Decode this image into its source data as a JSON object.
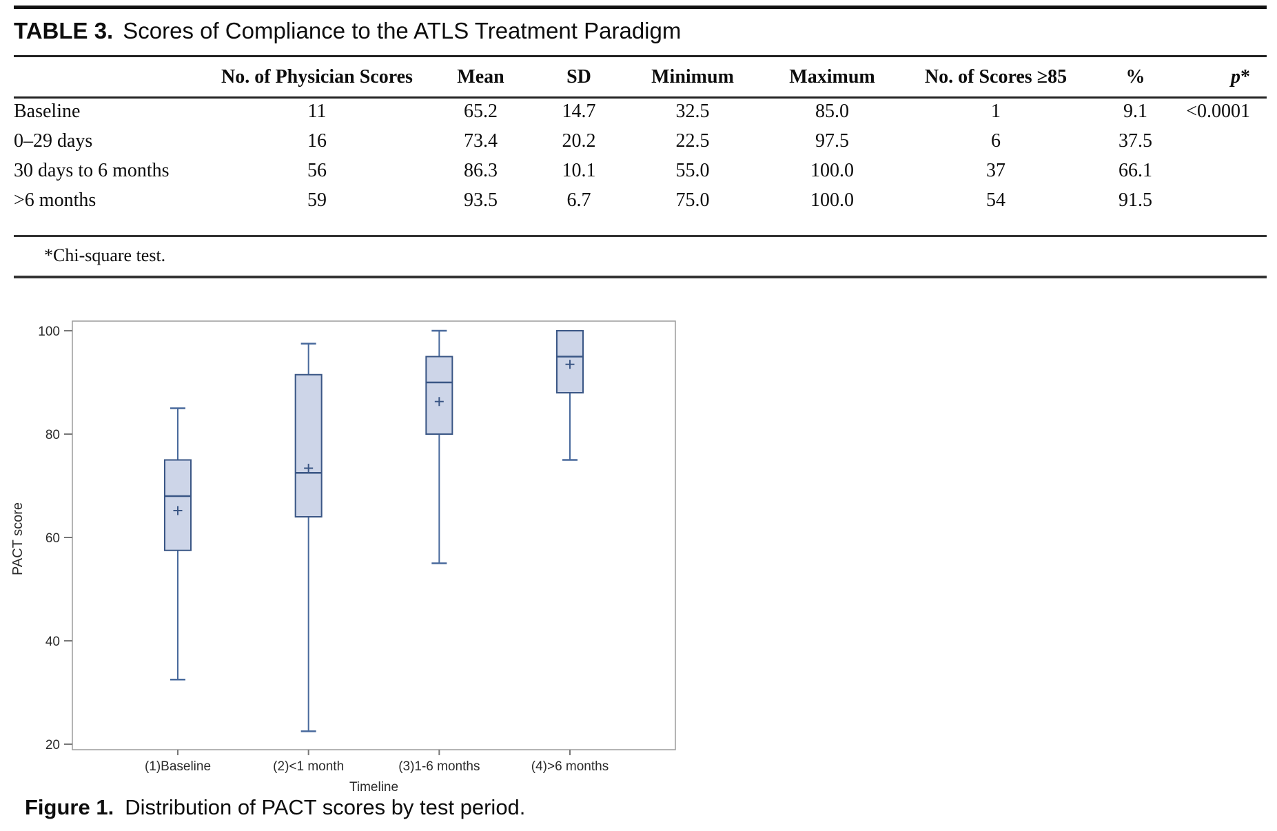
{
  "table": {
    "label": "TABLE 3.",
    "title": "Scores of Compliance to the ATLS Treatment Paradigm",
    "columns": [
      "",
      "No. of Physician Scores",
      "Mean",
      "SD",
      "Minimum",
      "Maximum",
      "No. of Scores ≥85",
      "%",
      "p*"
    ],
    "rows": [
      {
        "label": "Baseline",
        "n": "11",
        "mean": "65.2",
        "sd": "14.7",
        "min": "32.5",
        "max": "85.0",
        "n85": "1",
        "pct": "9.1",
        "p": "<0.0001"
      },
      {
        "label": "0–29 days",
        "n": "16",
        "mean": "73.4",
        "sd": "20.2",
        "min": "22.5",
        "max": "97.5",
        "n85": "6",
        "pct": "37.5",
        "p": ""
      },
      {
        "label": "30 days to 6 months",
        "n": "56",
        "mean": "86.3",
        "sd": "10.1",
        "min": "55.0",
        "max": "100.0",
        "n85": "37",
        "pct": "66.1",
        "p": ""
      },
      {
        "label": ">6 months",
        "n": "59",
        "mean": "93.5",
        "sd": "6.7",
        "min": "75.0",
        "max": "100.0",
        "n85": "54",
        "pct": "91.5",
        "p": ""
      }
    ],
    "footnote": "*Chi-square test."
  },
  "figure": {
    "caption_label": "Figure 1.",
    "caption_text": "Distribution of PACT scores by test period."
  },
  "chart_data": {
    "type": "boxplot",
    "xlabel": "Timeline",
    "ylabel": "PACT score",
    "ylim": [
      20,
      100
    ],
    "yticks": [
      100,
      80,
      60,
      40,
      20
    ],
    "grid": false,
    "categories": [
      "(1)Baseline",
      "(2)<1 month",
      "(3)1-6 months",
      "(4)>6 months"
    ],
    "series": [
      {
        "name": "(1)Baseline",
        "whisker_low": 32.5,
        "q1": 57.5,
        "median": 68.0,
        "q3": 75.0,
        "whisker_high": 85.0,
        "mean": 65.2
      },
      {
        "name": "(2)<1 month",
        "whisker_low": 22.5,
        "q1": 64.0,
        "median": 72.5,
        "q3": 91.5,
        "whisker_high": 97.5,
        "mean": 73.4
      },
      {
        "name": "(3)1-6 months",
        "whisker_low": 55.0,
        "q1": 80.0,
        "median": 90.0,
        "q3": 95.0,
        "whisker_high": 100.0,
        "mean": 86.3
      },
      {
        "name": "(4)>6 months",
        "whisker_low": 75.0,
        "q1": 88.0,
        "median": 95.0,
        "q3": 100.0,
        "whisker_high": 100.0,
        "mean": 93.5
      }
    ],
    "colors": {
      "box_fill": "#cdd5e8",
      "box_border": "#3a5685",
      "whisker": "#48699c",
      "mean_marker": "#3a5685",
      "frame": "#9b9b9b",
      "text": "#2a2a2a"
    }
  }
}
